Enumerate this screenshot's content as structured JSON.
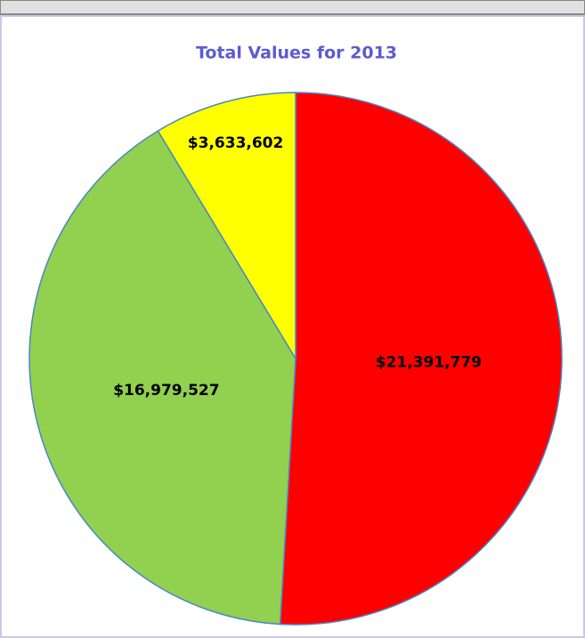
{
  "chart_data": {
    "type": "pie",
    "title": "Total Values for 2013",
    "categories": [
      null,
      null,
      null
    ],
    "values": [
      21391779,
      16979527,
      3633602
    ],
    "value_labels": [
      "$21,391,779",
      "$16,979,527",
      "$3,633,602"
    ],
    "colors": [
      "#ff0000",
      "#92d050",
      "#ffff00"
    ]
  }
}
